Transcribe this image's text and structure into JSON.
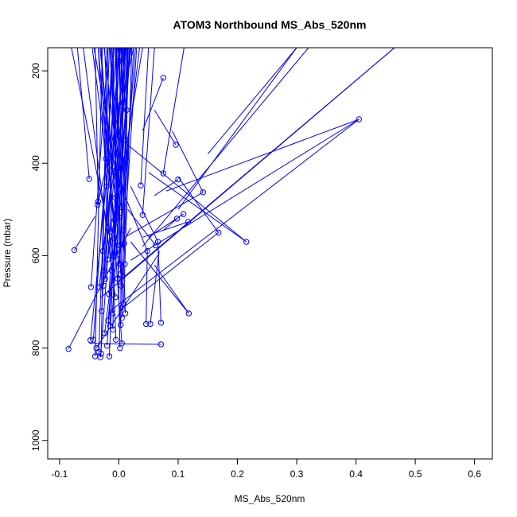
{
  "chart_data": {
    "type": "scatter",
    "title": "ATOM3 Northbound MS_Abs_520nm",
    "xlabel": "MS_Abs_520nm",
    "ylabel": "Pressure (mbar)",
    "xlim": [
      -0.12,
      0.63
    ],
    "ylim": [
      1040,
      150
    ],
    "y_reversed": true,
    "grid": false,
    "x_ticks": [
      -0.1,
      0.0,
      0.1,
      0.2,
      0.3,
      0.4,
      0.5,
      0.6
    ],
    "x_tick_labels": [
      "-0.1",
      "0.0",
      "0.1",
      "0.2",
      "0.3",
      "0.4",
      "0.5",
      "0.6"
    ],
    "y_ticks": [
      200,
      400,
      600,
      800,
      1000
    ],
    "y_tick_labels": [
      "200",
      "400",
      "600",
      "800",
      "1000"
    ],
    "series_color": "#0000ff",
    "marker": "open-circle",
    "points": [
      {
        "x": 0.405,
        "y": 305
      },
      {
        "x": 0.215,
        "y": 570
      },
      {
        "x": 0.168,
        "y": 550
      },
      {
        "x": 0.142,
        "y": 463
      },
      {
        "x": 0.118,
        "y": 725
      },
      {
        "x": 0.117,
        "y": 527
      },
      {
        "x": 0.109,
        "y": 510
      },
      {
        "x": 0.1,
        "y": 435
      },
      {
        "x": 0.098,
        "y": 520
      },
      {
        "x": 0.096,
        "y": 360
      },
      {
        "x": 0.075,
        "y": 215
      },
      {
        "x": 0.075,
        "y": 422
      },
      {
        "x": 0.071,
        "y": 792
      },
      {
        "x": 0.071,
        "y": 745
      },
      {
        "x": 0.066,
        "y": 570
      },
      {
        "x": 0.062,
        "y": 578
      },
      {
        "x": 0.053,
        "y": 748
      },
      {
        "x": 0.048,
        "y": 590
      },
      {
        "x": 0.046,
        "y": 748
      },
      {
        "x": 0.04,
        "y": 512
      },
      {
        "x": 0.037,
        "y": 448
      },
      {
        "x": 0.013,
        "y": 285
      },
      {
        "x": 0.012,
        "y": 350
      },
      {
        "x": 0.012,
        "y": 390
      },
      {
        "x": 0.011,
        "y": 725
      },
      {
        "x": 0.01,
        "y": 618
      },
      {
        "x": 0.009,
        "y": 573
      },
      {
        "x": 0.008,
        "y": 545
      },
      {
        "x": 0.008,
        "y": 705
      },
      {
        "x": 0.006,
        "y": 712
      },
      {
        "x": 0.005,
        "y": 790
      },
      {
        "x": 0.005,
        "y": 735
      },
      {
        "x": 0.004,
        "y": 665
      },
      {
        "x": 0.004,
        "y": 455
      },
      {
        "x": 0.004,
        "y": 495
      },
      {
        "x": 0.003,
        "y": 275
      },
      {
        "x": 0.003,
        "y": 640
      },
      {
        "x": 0.003,
        "y": 750
      },
      {
        "x": 0.002,
        "y": 800
      },
      {
        "x": 0.002,
        "y": 578
      },
      {
        "x": 0.001,
        "y": 618
      },
      {
        "x": 0.001,
        "y": 178
      },
      {
        "x": 0.0,
        "y": 517
      },
      {
        "x": -0.001,
        "y": 410
      },
      {
        "x": -0.002,
        "y": 650
      },
      {
        "x": -0.003,
        "y": 598
      },
      {
        "x": -0.004,
        "y": 428
      },
      {
        "x": -0.005,
        "y": 782
      },
      {
        "x": -0.006,
        "y": 690
      },
      {
        "x": -0.006,
        "y": 475
      },
      {
        "x": -0.007,
        "y": 523
      },
      {
        "x": -0.008,
        "y": 562
      },
      {
        "x": -0.009,
        "y": 600
      },
      {
        "x": -0.01,
        "y": 760
      },
      {
        "x": -0.011,
        "y": 725
      },
      {
        "x": -0.012,
        "y": 632
      },
      {
        "x": -0.013,
        "y": 415
      },
      {
        "x": -0.014,
        "y": 548
      },
      {
        "x": -0.015,
        "y": 752
      },
      {
        "x": -0.016,
        "y": 818
      },
      {
        "x": -0.017,
        "y": 683
      },
      {
        "x": -0.018,
        "y": 740
      },
      {
        "x": -0.019,
        "y": 608
      },
      {
        "x": -0.02,
        "y": 795
      },
      {
        "x": -0.021,
        "y": 450
      },
      {
        "x": -0.022,
        "y": 390
      },
      {
        "x": -0.023,
        "y": 650
      },
      {
        "x": -0.024,
        "y": 768
      },
      {
        "x": -0.025,
        "y": 633
      },
      {
        "x": -0.026,
        "y": 665
      },
      {
        "x": -0.027,
        "y": 590
      },
      {
        "x": -0.029,
        "y": 720
      },
      {
        "x": -0.03,
        "y": 812
      },
      {
        "x": -0.031,
        "y": 820
      },
      {
        "x": -0.033,
        "y": 668
      },
      {
        "x": -0.034,
        "y": 808
      },
      {
        "x": -0.035,
        "y": 483
      },
      {
        "x": -0.036,
        "y": 490
      },
      {
        "x": -0.038,
        "y": 800
      },
      {
        "x": -0.04,
        "y": 818
      },
      {
        "x": -0.043,
        "y": 782
      },
      {
        "x": -0.047,
        "y": 668
      },
      {
        "x": -0.048,
        "y": 783
      },
      {
        "x": -0.05,
        "y": 434
      },
      {
        "x": -0.075,
        "y": 588
      },
      {
        "x": -0.085,
        "y": 802
      }
    ],
    "segments": [
      [
        [
          -0.075,
          588
        ],
        [
          -0.04,
          515
        ]
      ],
      [
        [
          -0.085,
          802
        ],
        [
          0.02,
          540
        ]
      ],
      [
        [
          -0.038,
          800
        ],
        [
          0.068,
          595
        ]
      ],
      [
        [
          0.405,
          305
        ],
        [
          0.08,
          460
        ]
      ],
      [
        [
          0.405,
          305
        ],
        [
          0.02,
          610
        ]
      ],
      [
        [
          0.405,
          305
        ],
        [
          -0.015,
          720
        ]
      ],
      [
        [
          0.465,
          150
        ],
        [
          0.005,
          650
        ]
      ],
      [
        [
          0.465,
          150
        ],
        [
          -0.03,
          690
        ]
      ],
      [
        [
          0.32,
          150
        ],
        [
          0.04,
          580
        ]
      ],
      [
        [
          0.3,
          150
        ],
        [
          0.1,
          500
        ]
      ],
      [
        [
          0.3,
          150
        ],
        [
          0.15,
          380
        ]
      ],
      [
        [
          0.215,
          570
        ],
        [
          0.05,
          420
        ]
      ],
      [
        [
          0.215,
          570
        ],
        [
          0.01,
          355
        ]
      ],
      [
        [
          0.168,
          550
        ],
        [
          0.0,
          720
        ]
      ],
      [
        [
          0.142,
          463
        ],
        [
          0.01,
          560
        ]
      ],
      [
        [
          0.118,
          725
        ],
        [
          0.06,
          620
        ]
      ],
      [
        [
          0.118,
          725
        ],
        [
          0.02,
          570
        ]
      ],
      [
        [
          0.117,
          527
        ],
        [
          0.04,
          560
        ]
      ],
      [
        [
          0.109,
          510
        ],
        [
          0.05,
          560
        ]
      ],
      [
        [
          0.1,
          435
        ],
        [
          0.06,
          470
        ]
      ],
      [
        [
          0.098,
          520
        ],
        [
          0.075,
          545
        ]
      ],
      [
        [
          0.096,
          360
        ],
        [
          0.06,
          285
        ]
      ],
      [
        [
          0.075,
          215
        ],
        [
          0.04,
          330
        ]
      ],
      [
        [
          0.075,
          422
        ],
        [
          0.11,
          150
        ]
      ],
      [
        [
          0.071,
          792
        ],
        [
          -0.05,
          790
        ]
      ],
      [
        [
          0.071,
          745
        ],
        [
          0.066,
          570
        ]
      ],
      [
        [
          0.053,
          748
        ],
        [
          0.068,
          590
        ]
      ],
      [
        [
          0.046,
          748
        ],
        [
          0.048,
          590
        ]
      ],
      [
        [
          0.04,
          512
        ],
        [
          0.06,
          150
        ]
      ],
      [
        [
          0.037,
          448
        ],
        [
          0.05,
          150
        ]
      ],
      [
        [
          0.013,
          285
        ],
        [
          0.0,
          150
        ]
      ],
      [
        [
          0.012,
          350
        ],
        [
          0.007,
          150
        ]
      ],
      [
        [
          0.012,
          390
        ],
        [
          0.015,
          150
        ]
      ],
      [
        [
          0.011,
          725
        ],
        [
          -0.005,
          150
        ]
      ],
      [
        [
          0.008,
          545
        ],
        [
          0.025,
          150
        ]
      ],
      [
        [
          0.005,
          790
        ],
        [
          -0.03,
          150
        ]
      ],
      [
        [
          0.004,
          665
        ],
        [
          0.03,
          150
        ]
      ],
      [
        [
          0.003,
          640
        ],
        [
          -0.015,
          150
        ]
      ],
      [
        [
          0.002,
          800
        ],
        [
          -0.01,
          150
        ]
      ],
      [
        [
          0.001,
          178
        ],
        [
          -0.002,
          150
        ]
      ],
      [
        [
          -0.001,
          410
        ],
        [
          -0.025,
          150
        ]
      ],
      [
        [
          -0.003,
          598
        ],
        [
          -0.035,
          150
        ]
      ],
      [
        [
          -0.004,
          428
        ],
        [
          -0.042,
          150
        ]
      ],
      [
        [
          -0.006,
          690
        ],
        [
          -0.06,
          150
        ]
      ],
      [
        [
          -0.007,
          523
        ],
        [
          -0.045,
          150
        ]
      ],
      [
        [
          -0.009,
          600
        ],
        [
          -0.08,
          150
        ]
      ],
      [
        [
          -0.012,
          632
        ],
        [
          -0.035,
          150
        ]
      ],
      [
        [
          -0.013,
          415
        ],
        [
          -0.02,
          150
        ]
      ],
      [
        [
          -0.015,
          752
        ],
        [
          0.01,
          150
        ]
      ],
      [
        [
          -0.016,
          818
        ],
        [
          0.005,
          150
        ]
      ],
      [
        [
          -0.018,
          740
        ],
        [
          0.02,
          150
        ]
      ],
      [
        [
          -0.019,
          608
        ],
        [
          0.04,
          150
        ]
      ],
      [
        [
          -0.02,
          795
        ],
        [
          0.015,
          150
        ]
      ],
      [
        [
          -0.021,
          450
        ],
        [
          -0.01,
          150
        ]
      ],
      [
        [
          -0.023,
          650
        ],
        [
          0.0,
          150
        ]
      ],
      [
        [
          -0.024,
          768
        ],
        [
          0.035,
          150
        ]
      ],
      [
        [
          -0.025,
          633
        ],
        [
          -0.012,
          150
        ]
      ],
      [
        [
          -0.026,
          665
        ],
        [
          0.003,
          150
        ]
      ],
      [
        [
          -0.029,
          720
        ],
        [
          -0.005,
          150
        ]
      ],
      [
        [
          -0.03,
          812
        ],
        [
          -0.02,
          150
        ]
      ],
      [
        [
          -0.031,
          820
        ],
        [
          0.008,
          150
        ]
      ],
      [
        [
          -0.033,
          668
        ],
        [
          0.012,
          150
        ]
      ],
      [
        [
          -0.034,
          808
        ],
        [
          -0.016,
          150
        ]
      ],
      [
        [
          -0.035,
          483
        ],
        [
          -0.04,
          150
        ]
      ],
      [
        [
          -0.036,
          490
        ],
        [
          0.025,
          150
        ]
      ],
      [
        [
          -0.04,
          818
        ],
        [
          -0.028,
          150
        ]
      ],
      [
        [
          -0.043,
          782
        ],
        [
          -0.008,
          150
        ]
      ],
      [
        [
          -0.047,
          668
        ],
        [
          -0.018,
          150
        ]
      ],
      [
        [
          -0.048,
          783
        ],
        [
          0.002,
          150
        ]
      ],
      [
        [
          -0.05,
          434
        ],
        [
          -0.07,
          150
        ]
      ],
      [
        [
          0.01,
          618
        ],
        [
          0.004,
          150
        ]
      ],
      [
        [
          0.009,
          573
        ],
        [
          0.016,
          150
        ]
      ],
      [
        [
          0.008,
          705
        ],
        [
          0.022,
          150
        ]
      ],
      [
        [
          0.006,
          712
        ],
        [
          -0.006,
          150
        ]
      ],
      [
        [
          0.005,
          735
        ],
        [
          0.014,
          150
        ]
      ],
      [
        [
          0.004,
          455
        ],
        [
          0.001,
          150
        ]
      ],
      [
        [
          0.004,
          495
        ],
        [
          0.009,
          150
        ]
      ],
      [
        [
          0.003,
          275
        ],
        [
          -0.001,
          150
        ]
      ],
      [
        [
          0.003,
          750
        ],
        [
          0.006,
          150
        ]
      ],
      [
        [
          0.002,
          578
        ],
        [
          -0.004,
          150
        ]
      ],
      [
        [
          0.001,
          618
        ],
        [
          0.018,
          150
        ]
      ],
      [
        [
          0.0,
          517
        ],
        [
          -0.014,
          150
        ]
      ],
      [
        [
          -0.002,
          650
        ],
        [
          0.028,
          150
        ]
      ],
      [
        [
          -0.005,
          782
        ],
        [
          -0.024,
          150
        ]
      ],
      [
        [
          -0.006,
          475
        ],
        [
          -0.032,
          150
        ]
      ],
      [
        [
          -0.008,
          562
        ],
        [
          0.011,
          150
        ]
      ],
      [
        [
          -0.01,
          760
        ],
        [
          -0.003,
          150
        ]
      ],
      [
        [
          -0.011,
          725
        ],
        [
          0.019,
          150
        ]
      ],
      [
        [
          -0.014,
          548
        ],
        [
          -0.009,
          150
        ]
      ],
      [
        [
          -0.017,
          683
        ],
        [
          0.013,
          150
        ]
      ],
      [
        [
          -0.022,
          390
        ],
        [
          -0.03,
          150
        ]
      ],
      [
        [
          -0.027,
          590
        ],
        [
          0.021,
          150
        ]
      ],
      [
        [
          0.066,
          570
        ],
        [
          0.02,
          450
        ]
      ],
      [
        [
          0.062,
          578
        ],
        [
          0.015,
          500
        ]
      ],
      [
        [
          0.048,
          590
        ],
        [
          0.01,
          470
        ]
      ],
      [
        [
          0.168,
          550
        ],
        [
          0.1,
          430
        ]
      ],
      [
        [
          0.142,
          463
        ],
        [
          0.09,
          330
        ]
      ]
    ]
  }
}
